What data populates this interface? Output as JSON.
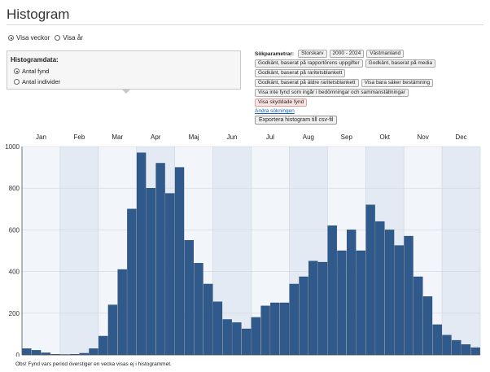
{
  "page": {
    "title": "Histogram"
  },
  "period": {
    "options": [
      {
        "label": "Visa veckor",
        "selected": true
      },
      {
        "label": "Visa år",
        "selected": false
      }
    ]
  },
  "histdata": {
    "heading": "Histogramdata:",
    "options": [
      {
        "label": "Antal fynd",
        "selected": true
      },
      {
        "label": "Antal individer",
        "selected": false
      }
    ]
  },
  "search": {
    "label": "Sökparametrar:",
    "tags_row1": [
      "Storskarv",
      "2000 - 2024",
      "Västmanland"
    ],
    "tags_row2": [
      "Godkänt, baserat på rapportörens uppgifter",
      "Godkänt, baserat på media"
    ],
    "tags_row3": [
      "Godkänt, baserat på raritetsblankett"
    ],
    "tags_row4": [
      "Godkänt, baserat på äldre raritetsblankett",
      "Visa bara säker bestämning"
    ],
    "tags_row5": [
      "Visa inte fynd som ingår i bedömningar och sammanställningar"
    ],
    "tags_row6": [
      "Visa skyddade fynd"
    ],
    "change_link": "Ändra sökningen"
  },
  "export_button": "Exportera histogram till csv-fil",
  "note": "Obs! Fynd vars period överstiger en vecka visas ej i histogrammet.",
  "colors": {
    "bar": "#305a8c",
    "bar_stroke": "#1f3f66",
    "band_light": "#f2f5fa",
    "band_dark": "#e3eaf3"
  },
  "chart_data": {
    "type": "bar",
    "months": [
      "Jan",
      "Feb",
      "Mar",
      "Apr",
      "Maj",
      "Jun",
      "Jul",
      "Aug",
      "Sep",
      "Okt",
      "Nov",
      "Dec"
    ],
    "x_label_unit": "week",
    "y_ticks": [
      0,
      200,
      400,
      600,
      800,
      1000
    ],
    "ylim": [
      0,
      1000
    ],
    "values": [
      30,
      22,
      10,
      3,
      2,
      3,
      8,
      30,
      90,
      240,
      410,
      700,
      970,
      800,
      920,
      775,
      900,
      550,
      440,
      340,
      255,
      170,
      155,
      125,
      180,
      235,
      250,
      250,
      340,
      375,
      450,
      445,
      620,
      500,
      600,
      500,
      720,
      640,
      600,
      525,
      570,
      375,
      280,
      145,
      95,
      70,
      50,
      35
    ],
    "grid": true
  }
}
